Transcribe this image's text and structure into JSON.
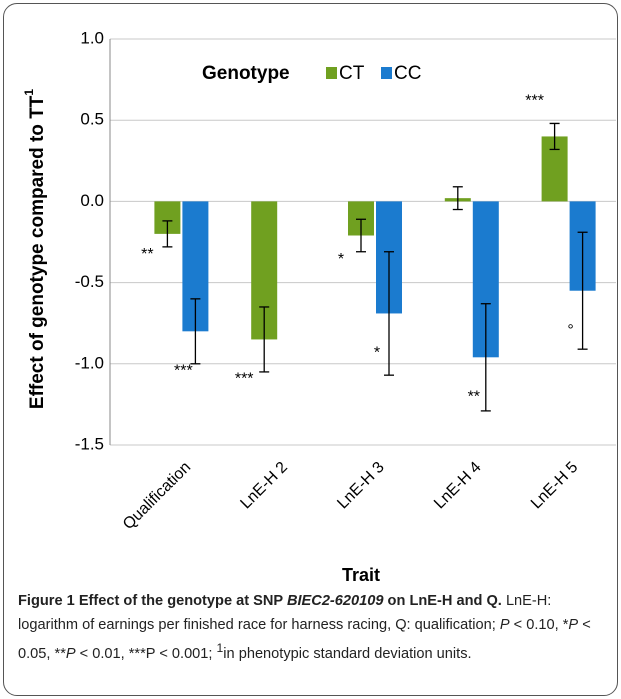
{
  "chart_data": {
    "type": "bar",
    "y_label": "Effect of genotype compared to TT",
    "y_label_sup": "1",
    "x_label": "Trait",
    "legend_title": "Genotype",
    "categories": [
      "Qualification",
      "LnE-H 2",
      "LnE-H 3",
      "LnE-H 4",
      "LnE-H 5"
    ],
    "series": [
      {
        "name": "CT",
        "color": "#70a020",
        "values": [
          -0.2,
          -0.85,
          -0.21,
          0.02,
          0.4
        ],
        "errors": [
          0.08,
          0.2,
          0.1,
          0.07,
          0.08
        ],
        "significance": [
          "**",
          "***",
          "*",
          null,
          "***"
        ]
      },
      {
        "name": "CC",
        "color": "#1b7bcf",
        "values": [
          -0.8,
          null,
          -0.69,
          -0.96,
          -0.55
        ],
        "errors": [
          0.2,
          null,
          0.38,
          0.33,
          0.36
        ],
        "significance": [
          "***",
          null,
          "*",
          "**",
          "°"
        ]
      }
    ],
    "ylim": [
      -1.5,
      1.0
    ],
    "yticks": [
      {
        "value": -1.5,
        "label": "-1.5"
      },
      {
        "value": -1.0,
        "label": "-1.0"
      },
      {
        "value": -0.5,
        "label": "-0.5"
      },
      {
        "value": 0.0,
        "label": "0.0"
      },
      {
        "value": 0.5,
        "label": "0.5"
      },
      {
        "value": 1.0,
        "label": "1.0"
      }
    ],
    "grid": true
  },
  "caption": {
    "title_parts": [
      "Figure 1 Effect of the genotype at SNP ",
      "BIEC2-620109",
      " on LnE-H and Q."
    ],
    "body_parts": [
      "LnE-H: logarithm of earnings per finished race for harness racing, Q: qualification; ",
      "P",
      " < 0.10, *",
      "P",
      " < 0.05, **",
      "P",
      " < 0.01, ***P < 0.001; ",
      "1",
      "in phenotypic standard deviation units."
    ]
  }
}
